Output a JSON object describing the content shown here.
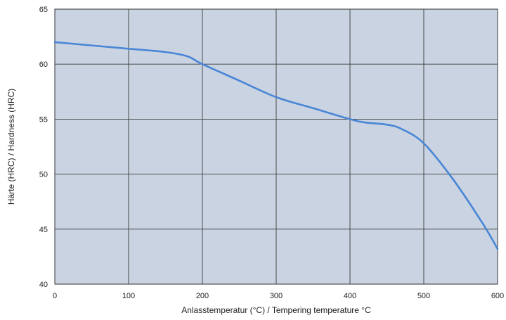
{
  "chart_data": {
    "type": "line",
    "title": "",
    "xlabel": "Anlasstemperatur (°C) / Tempering temperature °C",
    "ylabel": "Härte (HRC) / Hardness (HRC)",
    "xlim": [
      0,
      600
    ],
    "ylim": [
      40,
      65
    ],
    "xticks": [
      0,
      100,
      200,
      300,
      400,
      500,
      600
    ],
    "yticks": [
      40,
      45,
      50,
      55,
      60,
      65
    ],
    "grid": true,
    "plot_background": "#c9d3e2",
    "series": [
      {
        "color": "#4a86d6",
        "x": [
          0,
          50,
          100,
          150,
          180,
          200,
          250,
          300,
          350,
          400,
          420,
          450,
          470,
          500,
          540,
          580,
          600
        ],
        "y": [
          62.0,
          61.7,
          61.4,
          61.1,
          60.7,
          60.0,
          58.5,
          57.0,
          56.0,
          55.0,
          54.7,
          54.5,
          54.1,
          52.8,
          49.5,
          45.5,
          43.2
        ]
      }
    ]
  }
}
